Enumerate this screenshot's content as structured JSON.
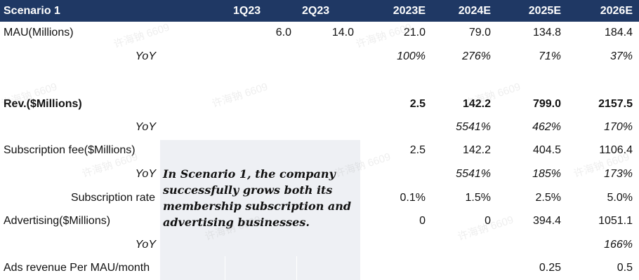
{
  "header": {
    "scenario": "Scenario 1",
    "cols": [
      "1Q23",
      "2Q23",
      "2023E",
      "2024E",
      "2025E",
      "2026E"
    ]
  },
  "rows": {
    "mau": {
      "label": "MAU(Millions)",
      "values": [
        "6.0",
        "14.0",
        "21.0",
        "79.0",
        "134.8",
        "184.4"
      ]
    },
    "mau_yoy": {
      "label": "YoY",
      "values": [
        "100%",
        "276%",
        "71%",
        "37%"
      ]
    },
    "rev": {
      "label": "Rev.($Millions)",
      "values": [
        "2.5",
        "142.2",
        "799.0",
        "2157.5"
      ]
    },
    "rev_yoy": {
      "label": "YoY",
      "values": [
        "5541%",
        "462%",
        "170%"
      ]
    },
    "sub_fee": {
      "label": "Subscription fee($Millions)",
      "values": [
        "2.5",
        "142.2",
        "404.5",
        "1106.4"
      ]
    },
    "sub_yoy": {
      "label": "YoY",
      "values": [
        "5541%",
        "185%",
        "173%"
      ]
    },
    "sub_rate": {
      "label": "Subscription rate",
      "values": [
        "0.1%",
        "1.5%",
        "2.5%",
        "5.0%"
      ]
    },
    "ads": {
      "label": "Advertising($Millions)",
      "values": [
        "0",
        "0",
        "394.4",
        "1051.1"
      ]
    },
    "ads_yoy": {
      "label": "YoY",
      "values": [
        "166%"
      ]
    },
    "ads_per_mau": {
      "label": "Ads revenue Per MAU/month",
      "values": [
        "0.25",
        "0.5"
      ]
    }
  },
  "note": "In Scenario 1, the company successfully grows both its membership subscription and advertising businesses.",
  "watermark": "许海钠 6609"
}
